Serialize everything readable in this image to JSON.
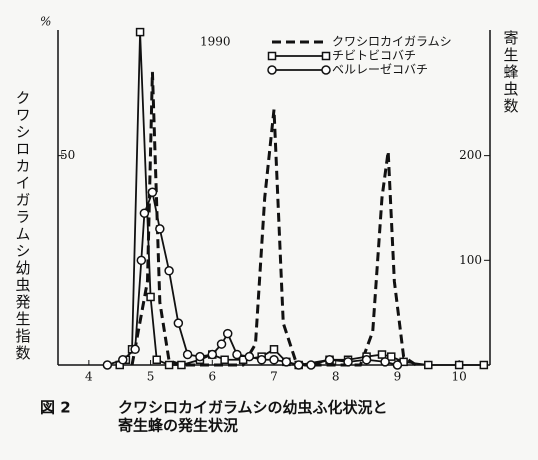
{
  "chart_data": {
    "type": "line",
    "unit_label": "%",
    "annotation": "1990",
    "ylabel": "クワシロカイガラムシ幼虫発生指数",
    "y2label": "寄生蜂虫数",
    "figure_label": "図 2",
    "caption": [
      "クワシロカイガラムシの幼虫ふ化状況と",
      "寄生蜂の発生状況"
    ],
    "xlim": [
      3.5,
      10.5
    ],
    "xticks": [
      4,
      5,
      6,
      7,
      8,
      9,
      10
    ],
    "ylim": [
      0,
      80
    ],
    "yticks": [
      50
    ],
    "y2lim": [
      0,
      320
    ],
    "y2ticks": [
      100,
      200
    ],
    "series": [
      {
        "name": "クワシロカイガラムシ",
        "color": "#111111",
        "style": "dashed",
        "marker": "none",
        "x": [
          4.7,
          4.95,
          5.03,
          5.15,
          5.3,
          5.5,
          6.5,
          6.7,
          6.85,
          7.0,
          7.15,
          7.35,
          7.5,
          8.4,
          8.6,
          8.75,
          8.85,
          8.95,
          9.1,
          9.3
        ],
        "values": [
          0,
          20,
          70,
          15,
          1,
          0,
          0,
          5,
          40,
          61,
          10,
          1,
          0,
          0,
          8,
          40,
          51,
          20,
          2,
          0
        ]
      },
      {
        "name": "チビトビコバチ",
        "color": "#111111",
        "style": "solid",
        "marker": "square",
        "axis": "y2",
        "x": [
          4.5,
          4.6,
          4.7,
          4.83,
          5.0,
          5.1,
          5.3,
          5.5,
          5.8,
          6.0,
          6.2,
          6.5,
          6.8,
          7.0,
          7.2,
          7.4,
          7.9,
          8.2,
          8.5,
          8.75,
          8.9,
          9.1,
          9.5,
          10.0,
          10.4
        ],
        "values": [
          0,
          5,
          15,
          318,
          65,
          5,
          0,
          0,
          5,
          10,
          5,
          5,
          8,
          15,
          3,
          0,
          5,
          5,
          8,
          10,
          8,
          3,
          0,
          0,
          0
        ]
      },
      {
        "name": "ベルレーゼコバチ",
        "color": "#111111",
        "style": "solid",
        "marker": "circle",
        "axis": "y2",
        "x": [
          4.3,
          4.55,
          4.75,
          4.85,
          4.9,
          5.03,
          5.15,
          5.3,
          5.45,
          5.6,
          5.8,
          6.0,
          6.15,
          6.25,
          6.4,
          6.6,
          6.8,
          7.0,
          7.2,
          7.4,
          7.6,
          7.9,
          8.2,
          8.5,
          8.8,
          9.0
        ],
        "values": [
          0,
          5,
          15,
          100,
          145,
          165,
          130,
          90,
          40,
          10,
          8,
          10,
          20,
          30,
          10,
          8,
          5,
          5,
          3,
          0,
          0,
          5,
          3,
          5,
          3,
          0
        ]
      }
    ]
  }
}
